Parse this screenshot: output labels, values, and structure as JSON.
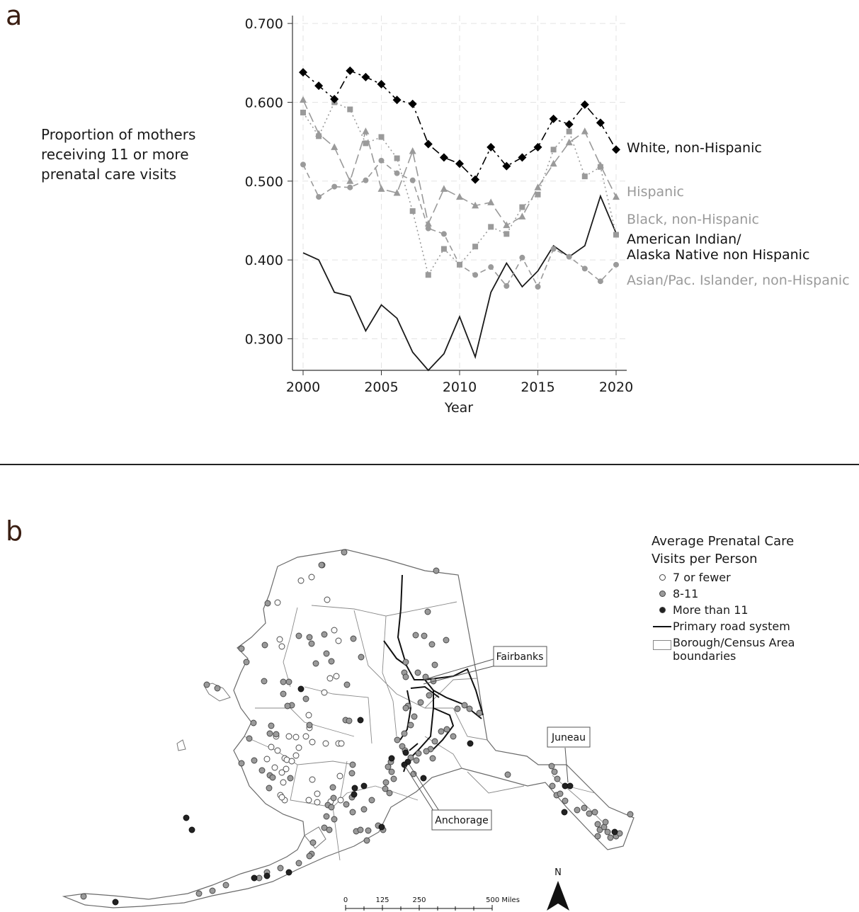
{
  "panel_a": {
    "letter": "a"
  },
  "panel_b": {
    "letter": "b"
  },
  "chart_data": {
    "type": "line",
    "ylabel": "Proportion of mothers receiving 11 or more prenatal care visits",
    "xlabel": "Year",
    "xlim": [
      2000,
      2020
    ],
    "ylim": [
      0.26,
      0.71
    ],
    "xticks": [
      2000,
      2005,
      2010,
      2015,
      2020
    ],
    "yticks": [
      "0.700",
      "0.600",
      "0.500",
      "0.400",
      "0.300"
    ],
    "ytick_values": [
      0.7,
      0.6,
      0.5,
      0.4,
      0.3
    ],
    "grid": true,
    "legend": "direct labels at right end of lines",
    "x": [
      2000,
      2001,
      2002,
      2003,
      2004,
      2005,
      2006,
      2007,
      2008,
      2009,
      2010,
      2011,
      2012,
      2013,
      2014,
      2015,
      2016,
      2017,
      2018,
      2019,
      2020
    ],
    "series": [
      {
        "name": "White, non-Hispanic",
        "color": "#000000",
        "marker": "diamond",
        "dash": "12,5,3,5",
        "values": [
          0.638,
          0.621,
          0.604,
          0.64,
          0.632,
          0.623,
          0.603,
          0.598,
          0.547,
          0.53,
          0.522,
          0.502,
          0.543,
          0.519,
          0.53,
          0.543,
          0.579,
          0.572,
          0.597,
          0.574,
          0.54
        ]
      },
      {
        "name": "Hispanic",
        "color": "#9a9a9a",
        "marker": "triangle",
        "dash": "14,6",
        "values": [
          0.603,
          0.56,
          0.543,
          0.5,
          0.563,
          0.49,
          0.485,
          0.538,
          0.446,
          0.49,
          0.48,
          0.469,
          0.473,
          0.444,
          0.455,
          0.492,
          0.522,
          0.549,
          0.563,
          0.52,
          0.48
        ]
      },
      {
        "name": "Black, non-Hispanic",
        "color": "#9a9a9a",
        "marker": "square",
        "dash": "2,4",
        "values": [
          0.587,
          0.557,
          0.6,
          0.591,
          0.548,
          0.556,
          0.529,
          0.462,
          0.381,
          0.414,
          0.394,
          0.417,
          0.442,
          0.433,
          0.467,
          0.483,
          0.54,
          0.563,
          0.506,
          0.518,
          0.432
        ]
      },
      {
        "name": "American Indian/ Alaska Native non Hispanic",
        "color": "#1a1a1a",
        "marker": "none",
        "dash": "",
        "values": [
          0.409,
          0.4,
          0.359,
          0.354,
          0.31,
          0.343,
          0.326,
          0.283,
          0.26,
          0.281,
          0.328,
          0.277,
          0.359,
          0.396,
          0.366,
          0.386,
          0.418,
          0.404,
          0.418,
          0.481,
          0.434
        ]
      },
      {
        "name": "Asian/Pac. Islander, non-Hispanic",
        "color": "#9a9a9a",
        "marker": "circle",
        "dash": "8,5",
        "values": [
          0.521,
          0.48,
          0.493,
          0.492,
          0.501,
          0.526,
          0.51,
          0.501,
          0.44,
          0.433,
          0.394,
          0.381,
          0.391,
          0.367,
          0.403,
          0.366,
          0.414,
          0.404,
          0.389,
          0.373,
          0.394
        ]
      }
    ]
  },
  "map": {
    "legend_title": "Average Prenatal Care Visits per Person",
    "legend_items": [
      {
        "label": "7 or fewer",
        "kind": "open"
      },
      {
        "label": "8-11",
        "kind": "mid"
      },
      {
        "label": "More than 11",
        "kind": "dark"
      },
      {
        "label": "Primary road system",
        "kind": "road"
      },
      {
        "label": "Borough/Census Area boundaries",
        "kind": "boundary"
      }
    ],
    "callouts": {
      "fairbanks": "Fairbanks",
      "juneau": "Juneau",
      "anchorage": "Anchorage"
    },
    "scale_labels": [
      "0",
      "125",
      "250",
      "500 Miles"
    ],
    "north_label": "N",
    "communities": {
      "open": [
        [
          440,
          815
        ],
        [
          392,
          851
        ],
        [
          462,
          847
        ],
        [
          472,
          890
        ],
        [
          478,
          905
        ],
        [
          395,
          903
        ],
        [
          398,
          913
        ],
        [
          466,
          958
        ],
        [
          475,
          955
        ],
        [
          458,
          978
        ],
        [
          436,
          1010
        ],
        [
          437,
          1028
        ],
        [
          432,
          1040
        ],
        [
          390,
          1040
        ],
        [
          408,
          1040
        ],
        [
          418,
          1041
        ],
        [
          460,
          1050
        ],
        [
          478,
          1050
        ],
        [
          392,
          1060
        ],
        [
          402,
          1071
        ],
        [
          405,
          1073
        ],
        [
          412,
          1075
        ],
        [
          377,
          1072
        ],
        [
          388,
          1084
        ],
        [
          400,
          1105
        ],
        [
          396,
          1123
        ],
        [
          402,
          1130
        ],
        [
          436,
          1130
        ],
        [
          448,
          1133
        ],
        [
          441,
          1101
        ],
        [
          480,
          1096
        ],
        [
          481,
          1130
        ],
        [
          422,
          1056
        ],
        [
          418,
          1067
        ],
        [
          404,
          1086
        ],
        [
          455,
          798
        ],
        [
          425,
          820
        ],
        [
          482,
          1050
        ],
        [
          441,
          1048
        ],
        [
          383,
          1055
        ],
        [
          398,
          1091
        ],
        [
          398,
          1126
        ],
        [
          467,
          1132
        ],
        [
          448,
          1121
        ]
      ],
      "mid": [
        [
          486,
          780
        ],
        [
          454,
          798
        ],
        [
          616,
          806
        ],
        [
          378,
          852
        ],
        [
          604,
          864
        ],
        [
          437,
          900
        ],
        [
          440,
          909
        ],
        [
          422,
          898
        ],
        [
          510,
          928
        ],
        [
          490,
          967
        ],
        [
          468,
          934
        ],
        [
          461,
          923
        ],
        [
          499,
          902
        ],
        [
          458,
          896
        ],
        [
          587,
          897
        ],
        [
          599,
          898
        ],
        [
          610,
          910
        ],
        [
          630,
          904
        ],
        [
          573,
          935
        ],
        [
          614,
          939
        ],
        [
          571,
          950
        ],
        [
          573,
          956
        ],
        [
          590,
          950
        ],
        [
          601,
          956
        ],
        [
          612,
          962
        ],
        [
          606,
          982
        ],
        [
          594,
          992
        ],
        [
          576,
          997
        ],
        [
          573,
          1000
        ],
        [
          585,
          1012
        ],
        [
          580,
          1024
        ],
        [
          571,
          1036
        ],
        [
          561,
          1045
        ],
        [
          568,
          1054
        ],
        [
          572,
          1060
        ],
        [
          580,
          1070
        ],
        [
          588,
          1074
        ],
        [
          611,
          1071
        ],
        [
          623,
          1033
        ],
        [
          631,
          1030
        ],
        [
          640,
          1040
        ],
        [
          646,
          1001
        ],
        [
          656,
          996
        ],
        [
          663,
          1001
        ],
        [
          677,
          1007
        ],
        [
          614,
          1047
        ],
        [
          608,
          1058
        ],
        [
          602,
          1061
        ],
        [
          591,
          1064
        ],
        [
          552,
          1076
        ],
        [
          548,
          1083
        ],
        [
          553,
          1090
        ],
        [
          556,
          1100
        ],
        [
          545,
          1105
        ],
        [
          544,
          1114
        ],
        [
          550,
          1120
        ],
        [
          584,
          1093
        ],
        [
          717,
          1094
        ],
        [
          779,
          1082
        ],
        [
          783,
          1090
        ],
        [
          787,
          1100
        ],
        [
          780,
          1110
        ],
        [
          786,
          1123
        ],
        [
          791,
          1121
        ],
        [
          798,
          1131
        ],
        [
          815,
          1144
        ],
        [
          825,
          1141
        ],
        [
          832,
          1149
        ],
        [
          840,
          1147
        ],
        [
          844,
          1164
        ],
        [
          847,
          1172
        ],
        [
          853,
          1168
        ],
        [
          858,
          1175
        ],
        [
          862,
          1183
        ],
        [
          870,
          1181
        ],
        [
          875,
          1177
        ],
        [
          855,
          1161
        ],
        [
          844,
          1181
        ],
        [
          890,
          1150
        ],
        [
          341,
          916
        ],
        [
          348,
          935
        ],
        [
          374,
          911
        ],
        [
          373,
          962
        ],
        [
          408,
          963
        ],
        [
          400,
          980
        ],
        [
          412,
          996
        ],
        [
          358,
          1021
        ],
        [
          352,
          1043
        ],
        [
          381,
          1036
        ],
        [
          390,
          1037
        ],
        [
          341,
          1078
        ],
        [
          359,
          1074
        ],
        [
          370,
          1088
        ],
        [
          381,
          1095
        ],
        [
          385,
          1098
        ],
        [
          410,
          1099
        ],
        [
          380,
          1113
        ],
        [
          470,
          1112
        ],
        [
          471,
          1127
        ],
        [
          463,
          1137
        ],
        [
          468,
          1140
        ],
        [
          461,
          1153
        ],
        [
          472,
          1157
        ],
        [
          458,
          1169
        ],
        [
          465,
          1172
        ],
        [
          442,
          1190
        ],
        [
          440,
          1206
        ],
        [
          437,
          1209
        ],
        [
          422,
          1219
        ],
        [
          396,
          1226
        ],
        [
          377,
          1232
        ],
        [
          366,
          1240
        ],
        [
          319,
          1250
        ],
        [
          300,
          1258
        ],
        [
          281,
          1262
        ],
        [
          118,
          1266
        ],
        [
          503,
          1174
        ],
        [
          509,
          1172
        ],
        [
          520,
          1173
        ],
        [
          518,
          1187
        ],
        [
          534,
          1166
        ],
        [
          541,
          1172
        ],
        [
          498,
          1147
        ],
        [
          489,
          1136
        ],
        [
          525,
          1130
        ],
        [
          514,
          1143
        ],
        [
          497,
          1126
        ],
        [
          292,
          967
        ],
        [
          307,
          972
        ],
        [
          383,
          1025
        ],
        [
          498,
          1080
        ],
        [
          497,
          1092
        ],
        [
          488,
          1017
        ],
        [
          493,
          1018
        ],
        [
          437,
          1024
        ],
        [
          432,
          987
        ],
        [
          400,
          963
        ],
        [
          406,
          997
        ],
        [
          446,
          937
        ]
      ],
      "dark": [
        [
          425,
          973
        ],
        [
          509,
          1017
        ],
        [
          664,
          1050
        ],
        [
          553,
          1071
        ],
        [
          573,
          1063
        ],
        [
          576,
          1076
        ],
        [
          571,
          1080
        ],
        [
          598,
          1099
        ],
        [
          501,
          1113
        ],
        [
          514,
          1110
        ],
        [
          500,
          1122
        ],
        [
          539,
          1168
        ],
        [
          798,
          1110
        ],
        [
          805,
          1110
        ],
        [
          797,
          1147
        ],
        [
          868,
          1175
        ],
        [
          263,
          1155
        ],
        [
          271,
          1172
        ],
        [
          408,
          1232
        ],
        [
          377,
          1237
        ],
        [
          359,
          1240
        ],
        [
          163,
          1274
        ]
      ]
    }
  }
}
